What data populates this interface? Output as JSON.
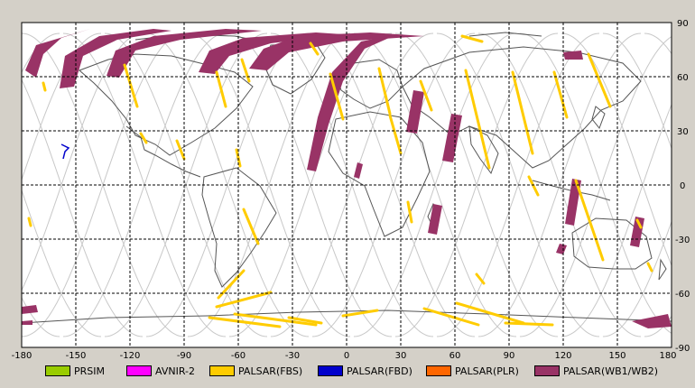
{
  "map": {
    "lon_ticks": [
      "-180",
      "-150",
      "-120",
      "-90",
      "-60",
      "-30",
      "0",
      "30",
      "60",
      "90",
      "120",
      "150",
      "180"
    ],
    "lat_ticks": [
      "90",
      "60",
      "30",
      "0",
      "-30",
      "-60",
      "-90"
    ],
    "colors": {
      "background": "#d4d0c8",
      "map_bg": "#ffffff",
      "grid": "#000000",
      "coastline": "#555555",
      "orbit_track": "#c8c8c8"
    }
  },
  "legend": {
    "items": [
      {
        "label": "PRSIM",
        "color": "#99cc00"
      },
      {
        "label": "AVNIR-2",
        "color": "#ff00ff"
      },
      {
        "label": "PALSAR(FBS)",
        "color": "#ffcc00"
      },
      {
        "label": "PALSAR(FBD)",
        "color": "#0000cc"
      },
      {
        "label": "PALSAR(PLR)",
        "color": "#ff6600"
      },
      {
        "label": "PALSAR(WB1/WB2)",
        "color": "#993366"
      }
    ]
  }
}
